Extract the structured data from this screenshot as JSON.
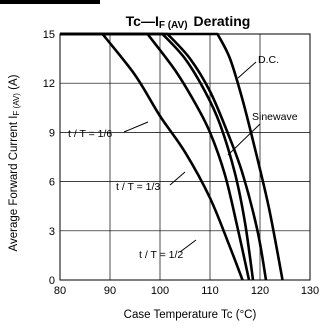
{
  "chart_data": {
    "type": "line",
    "title_prefix": "Tc—I",
    "title_sub": "F (AV)",
    "title_suffix": "Derating",
    "xlabel": "Case Temperature  Tc (°C)",
    "ylabel_prefix": "Average Forward Current  I",
    "ylabel_sub": "F (AV)",
    "ylabel_suffix": " (A)",
    "xlim": [
      80,
      130
    ],
    "ylim": [
      0,
      15
    ],
    "xticks": [
      "80",
      "90",
      "100",
      "110",
      "120",
      "130"
    ],
    "yticks": [
      "0",
      "3",
      "6",
      "9",
      "12",
      "15"
    ],
    "annotations": [
      "D.C.",
      "Sinewave",
      "t / T = 1/6",
      "t / T = 1/3",
      "t / T = 1/2"
    ],
    "series": [
      {
        "x": [
          80,
          88.5,
          95,
          100,
          105,
          110,
          114,
          116.5
        ],
        "y": [
          15,
          15,
          12.5,
          10,
          7.8,
          5,
          2,
          0
        ]
      },
      {
        "x": [
          80,
          97.5,
          103,
          107,
          110,
          113,
          115.5,
          117.8
        ],
        "y": [
          15,
          15,
          12.8,
          10.8,
          9,
          6.4,
          3.2,
          0
        ]
      },
      {
        "x": [
          80,
          100.5,
          105,
          109,
          112,
          115,
          117,
          118.6
        ],
        "y": [
          15,
          15,
          13.5,
          11.5,
          9.5,
          6.5,
          3.5,
          0
        ]
      },
      {
        "x": [
          80,
          101.5,
          106,
          110,
          113.5,
          116.5,
          119.5,
          121.2
        ],
        "y": [
          15,
          15,
          13.5,
          11.5,
          9,
          6.5,
          3,
          0
        ]
      },
      {
        "x": [
          80,
          111.5,
          114,
          116.5,
          119,
          121.5,
          123,
          124.5
        ],
        "y": [
          15,
          15,
          13.5,
          11,
          8,
          4.8,
          2.5,
          0
        ]
      }
    ]
  }
}
